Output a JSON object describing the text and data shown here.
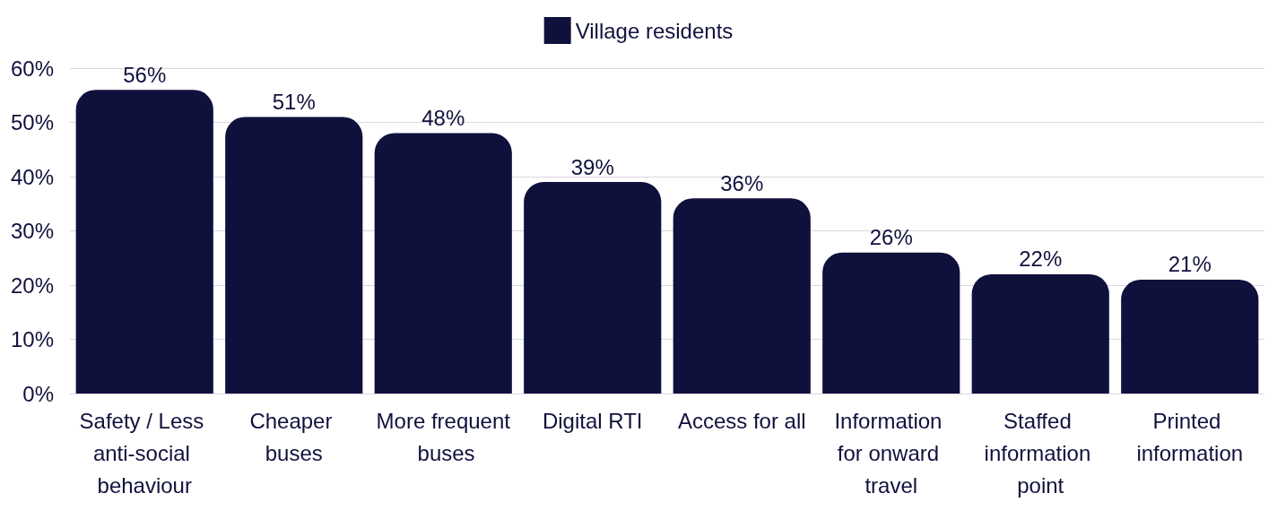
{
  "chart_data": {
    "type": "bar",
    "categories": [
      "Safety / Less anti-social behaviour",
      "Cheaper buses",
      "More frequent buses",
      "Digital RTI",
      "Access for all",
      "Information for onward travel",
      "Staffed information point",
      "Printed information"
    ],
    "series": [
      {
        "name": "Village residents",
        "color": "#10103d",
        "values": [
          56,
          51,
          48,
          39,
          36,
          26,
          22,
          21
        ],
        "value_labels": [
          "56%",
          "51%",
          "48%",
          "39%",
          "36%",
          "26%",
          "22%",
          "21%"
        ]
      }
    ],
    "ylim": [
      0,
      60
    ],
    "yticks": [
      {
        "value": 0,
        "label": "0%"
      },
      {
        "value": 10,
        "label": "10%"
      },
      {
        "value": 20,
        "label": "20%"
      },
      {
        "value": 30,
        "label": "30%"
      },
      {
        "value": 40,
        "label": "40%"
      },
      {
        "value": 50,
        "label": "50%"
      },
      {
        "value": 60,
        "label": "60%"
      }
    ],
    "grid": "y",
    "legend": "top"
  }
}
